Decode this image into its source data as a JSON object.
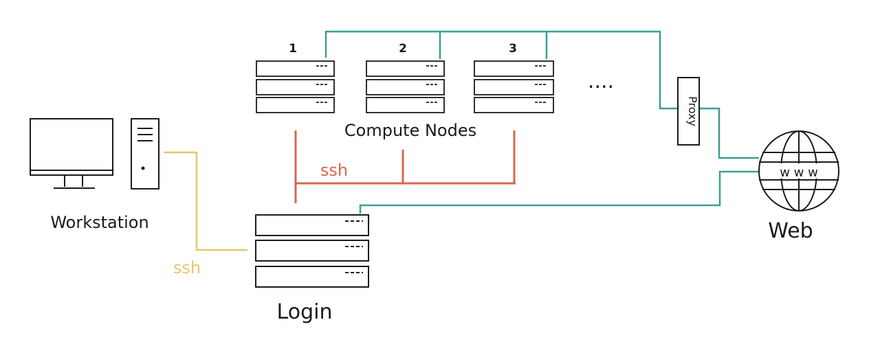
{
  "labels": {
    "workstation": "Workstation",
    "login": "Login",
    "compute_nodes": "Compute Nodes",
    "web": "Web",
    "proxy": "Proxy",
    "globe_text": "w w w",
    "ellipsis": "....",
    "ssh_workstation": "ssh",
    "ssh_login": "ssh",
    "node_numbers": [
      "1",
      "2",
      "3"
    ]
  },
  "colors": {
    "teal": "#3a9e93",
    "red": "#d9664f",
    "yellow": "#e8c56b",
    "ink": "#1a1a1a"
  },
  "icons": [
    "monitor-icon",
    "tower-icon",
    "server-icon",
    "globe-icon"
  ]
}
